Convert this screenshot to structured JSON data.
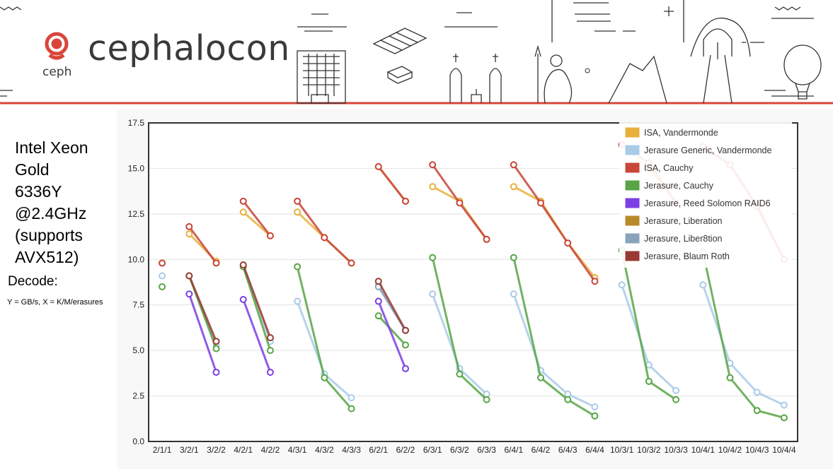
{
  "header": {
    "logo_text": "cephalocon",
    "ceph_text": "ceph",
    "accent_color": "#d9453b",
    "logo_icon": "ceph-logo-icon"
  },
  "side_panel": {
    "title_lines": [
      "Intel Xeon",
      "Gold",
      "6336Y",
      "@2.4GHz",
      "(supports",
      "AVX512)"
    ],
    "subtitle": "Decode:",
    "axes_note": "Y = GB/s, X = K/M/erasures"
  },
  "chart_data": {
    "type": "line",
    "categories": [
      "2/1/1",
      "3/2/1",
      "3/2/2",
      "4/2/1",
      "4/2/2",
      "4/3/1",
      "4/3/2",
      "4/3/3",
      "6/2/1",
      "6/2/2",
      "6/3/1",
      "6/3/2",
      "6/3/3",
      "6/4/1",
      "6/4/2",
      "6/4/3",
      "6/4/4",
      "10/3/1",
      "10/3/2",
      "10/3/3",
      "10/4/1",
      "10/4/2",
      "10/4/3",
      "10/4/4"
    ],
    "ylim": [
      0,
      17.5
    ],
    "yticks": [
      "0.0",
      "2.5",
      "5.0",
      "7.5",
      "10.0",
      "12.5",
      "15.0",
      "17.5"
    ],
    "grid": true,
    "legend_position": "top-right",
    "series": [
      {
        "name": "ISA, Vandermonde",
        "color": "#e8b13c",
        "segments": [
          [
            [
              0,
              9.8
            ]
          ],
          [
            [
              1,
              11.4
            ],
            [
              2,
              9.9
            ]
          ],
          [
            [
              3,
              12.6
            ],
            [
              4,
              11.3
            ]
          ],
          [
            [
              5,
              12.6
            ],
            [
              6,
              11.2
            ],
            [
              7,
              9.8
            ]
          ],
          [
            [
              8,
              15.1
            ],
            [
              9,
              13.2
            ]
          ],
          [
            [
              10,
              14.0
            ],
            [
              11,
              13.2
            ],
            [
              12,
              11.1
            ]
          ],
          [
            [
              13,
              14.0
            ],
            [
              14,
              13.2
            ],
            [
              15,
              10.9
            ],
            [
              16,
              9.0
            ]
          ],
          [
            [
              17,
              16.3
            ],
            [
              18,
              15.0
            ],
            [
              19,
              13.1
            ]
          ],
          [
            [
              20,
              16.2
            ],
            [
              21,
              15.2
            ],
            [
              22,
              13.0
            ],
            [
              23,
              10.0
            ]
          ]
        ]
      },
      {
        "name": "Jerasure Generic, Vandermonde",
        "color": "#a9cbe8",
        "segments": [
          [
            [
              0,
              9.1
            ]
          ],
          [
            [
              1,
              9.1
            ],
            [
              2,
              5.3
            ]
          ],
          [
            [
              3,
              9.6
            ],
            [
              4,
              5.5
            ]
          ],
          [
            [
              5,
              7.7
            ],
            [
              6,
              3.7
            ],
            [
              7,
              2.4
            ]
          ],
          [
            [
              8,
              8.6
            ],
            [
              9,
              6.1
            ]
          ],
          [
            [
              10,
              8.1
            ],
            [
              11,
              4.0
            ],
            [
              12,
              2.6
            ]
          ],
          [
            [
              13,
              8.1
            ],
            [
              14,
              3.9
            ],
            [
              15,
              2.6
            ],
            [
              16,
              1.9
            ]
          ],
          [
            [
              17,
              8.6
            ],
            [
              18,
              4.2
            ],
            [
              19,
              2.8
            ]
          ],
          [
            [
              20,
              8.6
            ],
            [
              21,
              4.3
            ],
            [
              22,
              2.7
            ],
            [
              23,
              2.0
            ]
          ]
        ]
      },
      {
        "name": "ISA, Cauchy",
        "color": "#c8463a",
        "segments": [
          [
            [
              0,
              9.8
            ]
          ],
          [
            [
              1,
              11.8
            ],
            [
              2,
              9.8
            ]
          ],
          [
            [
              3,
              13.2
            ],
            [
              4,
              11.3
            ]
          ],
          [
            [
              5,
              13.2
            ],
            [
              6,
              11.2
            ],
            [
              7,
              9.8
            ]
          ],
          [
            [
              8,
              15.1
            ],
            [
              9,
              13.2
            ]
          ],
          [
            [
              10,
              15.2
            ],
            [
              11,
              13.1
            ],
            [
              12,
              11.1
            ]
          ],
          [
            [
              13,
              15.2
            ],
            [
              14,
              13.1
            ],
            [
              15,
              10.9
            ],
            [
              16,
              8.8
            ]
          ],
          [
            [
              17,
              16.3
            ],
            [
              18,
              15.3
            ],
            [
              19,
              13.1
            ]
          ],
          [
            [
              20,
              16.2
            ],
            [
              21,
              15.2
            ],
            [
              22,
              12.9
            ],
            [
              23,
              10.0
            ]
          ]
        ]
      },
      {
        "name": "Jerasure, Cauchy",
        "color": "#58a446",
        "segments": [
          [
            [
              0,
              8.5
            ]
          ],
          [
            [
              1,
              9.1
            ],
            [
              2,
              5.1
            ]
          ],
          [
            [
              3,
              9.6
            ],
            [
              4,
              5.0
            ]
          ],
          [
            [
              5,
              9.6
            ],
            [
              6,
              3.5
            ],
            [
              7,
              1.8
            ]
          ],
          [
            [
              8,
              6.9
            ],
            [
              9,
              5.3
            ]
          ],
          [
            [
              10,
              10.1
            ],
            [
              11,
              3.7
            ],
            [
              12,
              2.3
            ]
          ],
          [
            [
              13,
              10.1
            ],
            [
              14,
              3.5
            ],
            [
              15,
              2.3
            ],
            [
              16,
              1.4
            ]
          ],
          [
            [
              17,
              10.5
            ],
            [
              18,
              3.3
            ],
            [
              19,
              2.3
            ]
          ],
          [
            [
              20,
              10.4
            ],
            [
              21,
              3.5
            ],
            [
              22,
              1.7
            ],
            [
              23,
              1.3
            ]
          ]
        ]
      },
      {
        "name": "Jerasure, Reed Solomon RAID6",
        "color": "#7b3fe4",
        "segments": [
          [
            [
              1,
              8.1
            ],
            [
              2,
              3.8
            ]
          ],
          [
            [
              3,
              7.8
            ],
            [
              4,
              3.8
            ]
          ],
          [
            [
              8,
              7.7
            ],
            [
              9,
              4.0
            ]
          ]
        ]
      },
      {
        "name": "Jerasure, Liberation",
        "color": "#b98a2a",
        "segments": []
      },
      {
        "name": "Jerasure, Liber8tion",
        "color": "#8aa3bd",
        "segments": [
          [
            [
              8,
              8.5
            ],
            [
              9,
              6.1
            ]
          ]
        ]
      },
      {
        "name": "Jerasure, Blaum Roth",
        "color": "#993b33",
        "segments": [
          [
            [
              1,
              9.1
            ],
            [
              2,
              5.5
            ]
          ],
          [
            [
              3,
              9.7
            ],
            [
              4,
              5.7
            ]
          ],
          [
            [
              8,
              8.8
            ],
            [
              9,
              6.1
            ]
          ]
        ]
      }
    ]
  }
}
